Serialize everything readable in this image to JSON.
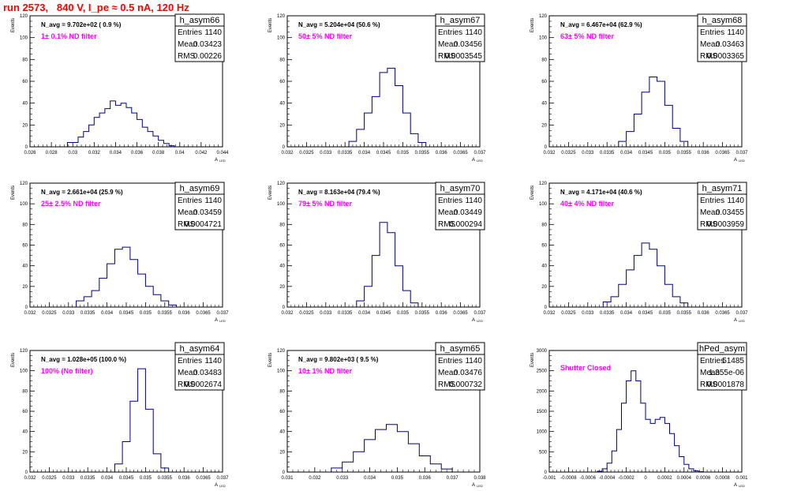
{
  "run_title": "run 2573,   840 V, I_pe ≈ 0.5 nA, 120 Hz",
  "colors": {
    "title": "#ff0000",
    "histogram": "#000080",
    "annotation": "#ff00ff",
    "axis": "#000000"
  },
  "stats_labels": {
    "entries": "Entries",
    "mean": "Mean",
    "rms": "RMS"
  },
  "chart_data": [
    {
      "type": "histogram",
      "name": "h_asym66",
      "navg": "N_avg = 9.702e+02 ( 0.9 %)",
      "note": "1± 0.1% ND filter",
      "stats": {
        "entries": "1140",
        "mean": "0.03423",
        "rms": "0.00226"
      },
      "xlim": [
        0.026,
        0.044
      ],
      "ylim": [
        0,
        120
      ],
      "xticks": [
        0.026,
        0.028,
        0.03,
        0.032,
        0.034,
        0.036,
        0.038,
        0.04,
        0.042,
        0.044
      ],
      "xticklabels": [
        "0.026",
        "0.028",
        "0.03",
        "0.032",
        "0.034",
        "0.036",
        "0.038",
        "0.04",
        "0.042",
        "0.044"
      ],
      "yticks": [
        0,
        20,
        40,
        60,
        80,
        100,
        120
      ],
      "ylabel": "Events",
      "xlabel": "A",
      "bin_edges": [
        0.0295,
        0.0305,
        0.031,
        0.0315,
        0.032,
        0.0325,
        0.033,
        0.0335,
        0.034,
        0.0345,
        0.035,
        0.0355,
        0.036,
        0.0365,
        0.037,
        0.0375,
        0.038,
        0.0385,
        0.039,
        0.0395
      ],
      "counts": [
        4,
        9,
        14,
        20,
        27,
        31,
        35,
        42,
        38,
        40,
        36,
        31,
        25,
        18,
        14,
        10,
        6,
        3,
        1
      ]
    },
    {
      "type": "histogram",
      "name": "h_asym67",
      "navg": "N_avg = 5.204e+04 (50.6 %)",
      "note": "50± 5% ND filter",
      "stats": {
        "entries": "1140",
        "mean": "0.03456",
        "rms": "0.0003545"
      },
      "xlim": [
        0.032,
        0.037
      ],
      "ylim": [
        0,
        120
      ],
      "xticks": [
        0.032,
        0.0325,
        0.033,
        0.0335,
        0.034,
        0.0345,
        0.035,
        0.0355,
        0.036,
        0.0365,
        0.037
      ],
      "xticklabels": [
        "0.032",
        "0.0325",
        "0.033",
        "0.0335",
        "0.034",
        "0.0345",
        "0.035",
        "0.0355",
        "0.036",
        "0.0365",
        "0.037"
      ],
      "yticks": [
        0,
        20,
        40,
        60,
        80,
        100,
        120
      ],
      "ylabel": "Events",
      "xlabel": "A",
      "bin_edges": [
        0.0336,
        0.0338,
        0.034,
        0.0342,
        0.0344,
        0.0346,
        0.0348,
        0.035,
        0.0352,
        0.0354,
        0.0356
      ],
      "counts": [
        5,
        16,
        31,
        46,
        68,
        72,
        56,
        31,
        12,
        4
      ]
    },
    {
      "type": "histogram",
      "name": "h_asym68",
      "navg": "N_avg = 6.467e+04 (62.9 %)",
      "note": "63± 5% ND filter",
      "stats": {
        "entries": "1140",
        "mean": "0.03463",
        "rms": "0.0003365"
      },
      "xlim": [
        0.032,
        0.037
      ],
      "ylim": [
        0,
        120
      ],
      "xticks": [
        0.032,
        0.0325,
        0.033,
        0.0335,
        0.034,
        0.0345,
        0.035,
        0.0355,
        0.036,
        0.0365,
        0.037
      ],
      "xticklabels": [
        "0.032",
        "0.0325",
        "0.033",
        "0.0335",
        "0.034",
        "0.0345",
        "0.035",
        "0.0355",
        "0.036",
        "0.0365",
        "0.037"
      ],
      "yticks": [
        0,
        20,
        40,
        60,
        80,
        100,
        120
      ],
      "ylabel": "Events",
      "xlabel": "A",
      "bin_edges": [
        0.0338,
        0.034,
        0.0342,
        0.0344,
        0.0346,
        0.0348,
        0.035,
        0.0352,
        0.0354,
        0.0356
      ],
      "counts": [
        5,
        14,
        30,
        50,
        64,
        60,
        38,
        17,
        5
      ]
    },
    {
      "type": "histogram",
      "name": "h_asym69",
      "navg": "N_avg = 2.661e+04 (25.9 %)",
      "note": "25± 2.5% ND filter",
      "stats": {
        "entries": "1140",
        "mean": "0.03459",
        "rms": "0.0004721"
      },
      "xlim": [
        0.032,
        0.037
      ],
      "ylim": [
        0,
        120
      ],
      "xticks": [
        0.032,
        0.0325,
        0.033,
        0.0335,
        0.034,
        0.0345,
        0.035,
        0.0355,
        0.036,
        0.0365,
        0.037
      ],
      "xticklabels": [
        "0.032",
        "0.0325",
        "0.033",
        "0.0335",
        "0.034",
        "0.0345",
        "0.035",
        "0.0355",
        "0.036",
        "0.0365",
        "0.037"
      ],
      "yticks": [
        0,
        20,
        40,
        60,
        80,
        100,
        120
      ],
      "ylabel": "Events",
      "xlabel": "A",
      "bin_edges": [
        0.0332,
        0.0334,
        0.0336,
        0.0338,
        0.034,
        0.0342,
        0.0344,
        0.0346,
        0.0348,
        0.035,
        0.0352,
        0.0354,
        0.0356,
        0.0358
      ],
      "counts": [
        6,
        10,
        16,
        28,
        42,
        56,
        58,
        46,
        32,
        20,
        12,
        6,
        2
      ]
    },
    {
      "type": "histogram",
      "name": "h_asym70",
      "navg": "N_avg = 8.163e+04 (79.4 %)",
      "note": "79± 5% ND filter",
      "stats": {
        "entries": "1140",
        "mean": "0.03449",
        "rms": "0.000294"
      },
      "xlim": [
        0.032,
        0.037
      ],
      "ylim": [
        0,
        120
      ],
      "xticks": [
        0.032,
        0.0325,
        0.033,
        0.0335,
        0.034,
        0.0345,
        0.035,
        0.0355,
        0.036,
        0.0365,
        0.037
      ],
      "xticklabels": [
        "0.032",
        "0.0325",
        "0.033",
        "0.0335",
        "0.034",
        "0.0345",
        "0.035",
        "0.0355",
        "0.036",
        "0.0365",
        "0.037"
      ],
      "yticks": [
        0,
        20,
        40,
        60,
        80,
        100,
        120
      ],
      "ylabel": "Events",
      "xlabel": "A",
      "bin_edges": [
        0.0338,
        0.034,
        0.0342,
        0.0344,
        0.0346,
        0.0348,
        0.035,
        0.0352,
        0.0354
      ],
      "counts": [
        6,
        20,
        50,
        82,
        72,
        40,
        16,
        4
      ]
    },
    {
      "type": "histogram",
      "name": "h_asym71",
      "navg": "N_avg = 4.171e+04 (40.6 %)",
      "note": "40± 4% ND filter",
      "stats": {
        "entries": "1140",
        "mean": "0.03455",
        "rms": "0.0003959"
      },
      "xlim": [
        0.032,
        0.037
      ],
      "ylim": [
        0,
        120
      ],
      "xticks": [
        0.032,
        0.0325,
        0.033,
        0.0335,
        0.034,
        0.0345,
        0.035,
        0.0355,
        0.036,
        0.0365,
        0.037
      ],
      "xticklabels": [
        "0.032",
        "0.0325",
        "0.033",
        "0.0335",
        "0.034",
        "0.0345",
        "0.035",
        "0.0355",
        "0.036",
        "0.0365",
        "0.037"
      ],
      "yticks": [
        0,
        20,
        40,
        60,
        80,
        100,
        120
      ],
      "ylabel": "Events",
      "xlabel": "A",
      "bin_edges": [
        0.0334,
        0.0336,
        0.0338,
        0.034,
        0.0342,
        0.0344,
        0.0346,
        0.0348,
        0.035,
        0.0352,
        0.0354,
        0.0356
      ],
      "counts": [
        5,
        10,
        22,
        36,
        50,
        62,
        56,
        40,
        22,
        10,
        4
      ]
    },
    {
      "type": "histogram",
      "name": "h_asym64",
      "navg": "N_avg = 1.028e+05 (100.0 %)",
      "note": "100% (No filter)",
      "stats": {
        "entries": "1140",
        "mean": "0.03483",
        "rms": "0.0002674"
      },
      "xlim": [
        0.032,
        0.037
      ],
      "ylim": [
        0,
        120
      ],
      "xticks": [
        0.032,
        0.0325,
        0.033,
        0.0335,
        0.034,
        0.0345,
        0.035,
        0.0355,
        0.036,
        0.0365,
        0.037
      ],
      "xticklabels": [
        "0.032",
        "0.0325",
        "0.033",
        "0.0335",
        "0.034",
        "0.0345",
        "0.035",
        "0.0355",
        "0.036",
        "0.0365",
        "0.037"
      ],
      "yticks": [
        0,
        20,
        40,
        60,
        80,
        100,
        120
      ],
      "ylabel": "Events",
      "xlabel": "A",
      "bin_edges": [
        0.0342,
        0.0344,
        0.0346,
        0.0348,
        0.035,
        0.0352,
        0.0354,
        0.0356
      ],
      "counts": [
        8,
        30,
        70,
        102,
        62,
        18,
        4
      ]
    },
    {
      "type": "histogram",
      "name": "h_asym65",
      "navg": "N_avg = 9.802e+03 ( 9.5 %)",
      "note": "10± 1% ND filter",
      "stats": {
        "entries": "1140",
        "mean": "0.03476",
        "rms": "0.000732"
      },
      "xlim": [
        0.031,
        0.038
      ],
      "ylim": [
        0,
        120
      ],
      "xticks": [
        0.031,
        0.032,
        0.033,
        0.034,
        0.035,
        0.036,
        0.037,
        0.038
      ],
      "xticklabels": [
        "0.031",
        "0.032",
        "0.033",
        "0.034",
        "0.035",
        "0.036",
        "0.037",
        "0.038"
      ],
      "yticks": [
        0,
        20,
        40,
        60,
        80,
        100,
        120
      ],
      "ylabel": "Events",
      "xlabel": "A",
      "bin_edges": [
        0.0326,
        0.033,
        0.0334,
        0.0338,
        0.0342,
        0.0346,
        0.035,
        0.0354,
        0.0358,
        0.0362,
        0.0366,
        0.037
      ],
      "counts": [
        4,
        10,
        20,
        32,
        42,
        47,
        40,
        28,
        16,
        8,
        3
      ]
    },
    {
      "type": "histogram",
      "name": "hPed_asym",
      "navg": "",
      "note": "Shutter Closed",
      "stats": {
        "entries": "51485",
        "mean": "1.355e-06",
        "rms": "0.0001878"
      },
      "xlim": [
        -0.001,
        0.001
      ],
      "ylim": [
        0,
        3000
      ],
      "xticks": [
        -0.001,
        -0.0008,
        -0.0006,
        -0.0004,
        -0.0002,
        0,
        0.0002,
        0.0004,
        0.0006,
        0.0008,
        0.001
      ],
      "xticklabels": [
        "-0.001",
        "-0.0008",
        "-0.0006",
        "-0.0004",
        "-0.0002",
        "0",
        "0.0002",
        "0.0004",
        "0.0006",
        "0.0008",
        "0.001"
      ],
      "yticks": [
        0,
        500,
        1000,
        1500,
        2000,
        2500,
        3000
      ],
      "ylabel": "Events",
      "xlabel": "A",
      "bin_edges": [
        -0.0005,
        -0.00045,
        -0.0004,
        -0.00035,
        -0.0003,
        -0.00025,
        -0.0002,
        -0.00015,
        -0.0001,
        -5e-05,
        0.0,
        5e-05,
        0.0001,
        0.00015,
        0.0002,
        0.00025,
        0.0003,
        0.00035,
        0.0004,
        0.00045,
        0.0005,
        0.00055,
        0.0006
      ],
      "counts": [
        20,
        80,
        220,
        520,
        1050,
        1700,
        2250,
        2500,
        2250,
        1700,
        1300,
        1200,
        1300,
        1350,
        1200,
        950,
        650,
        380,
        190,
        80,
        30,
        10
      ]
    }
  ]
}
